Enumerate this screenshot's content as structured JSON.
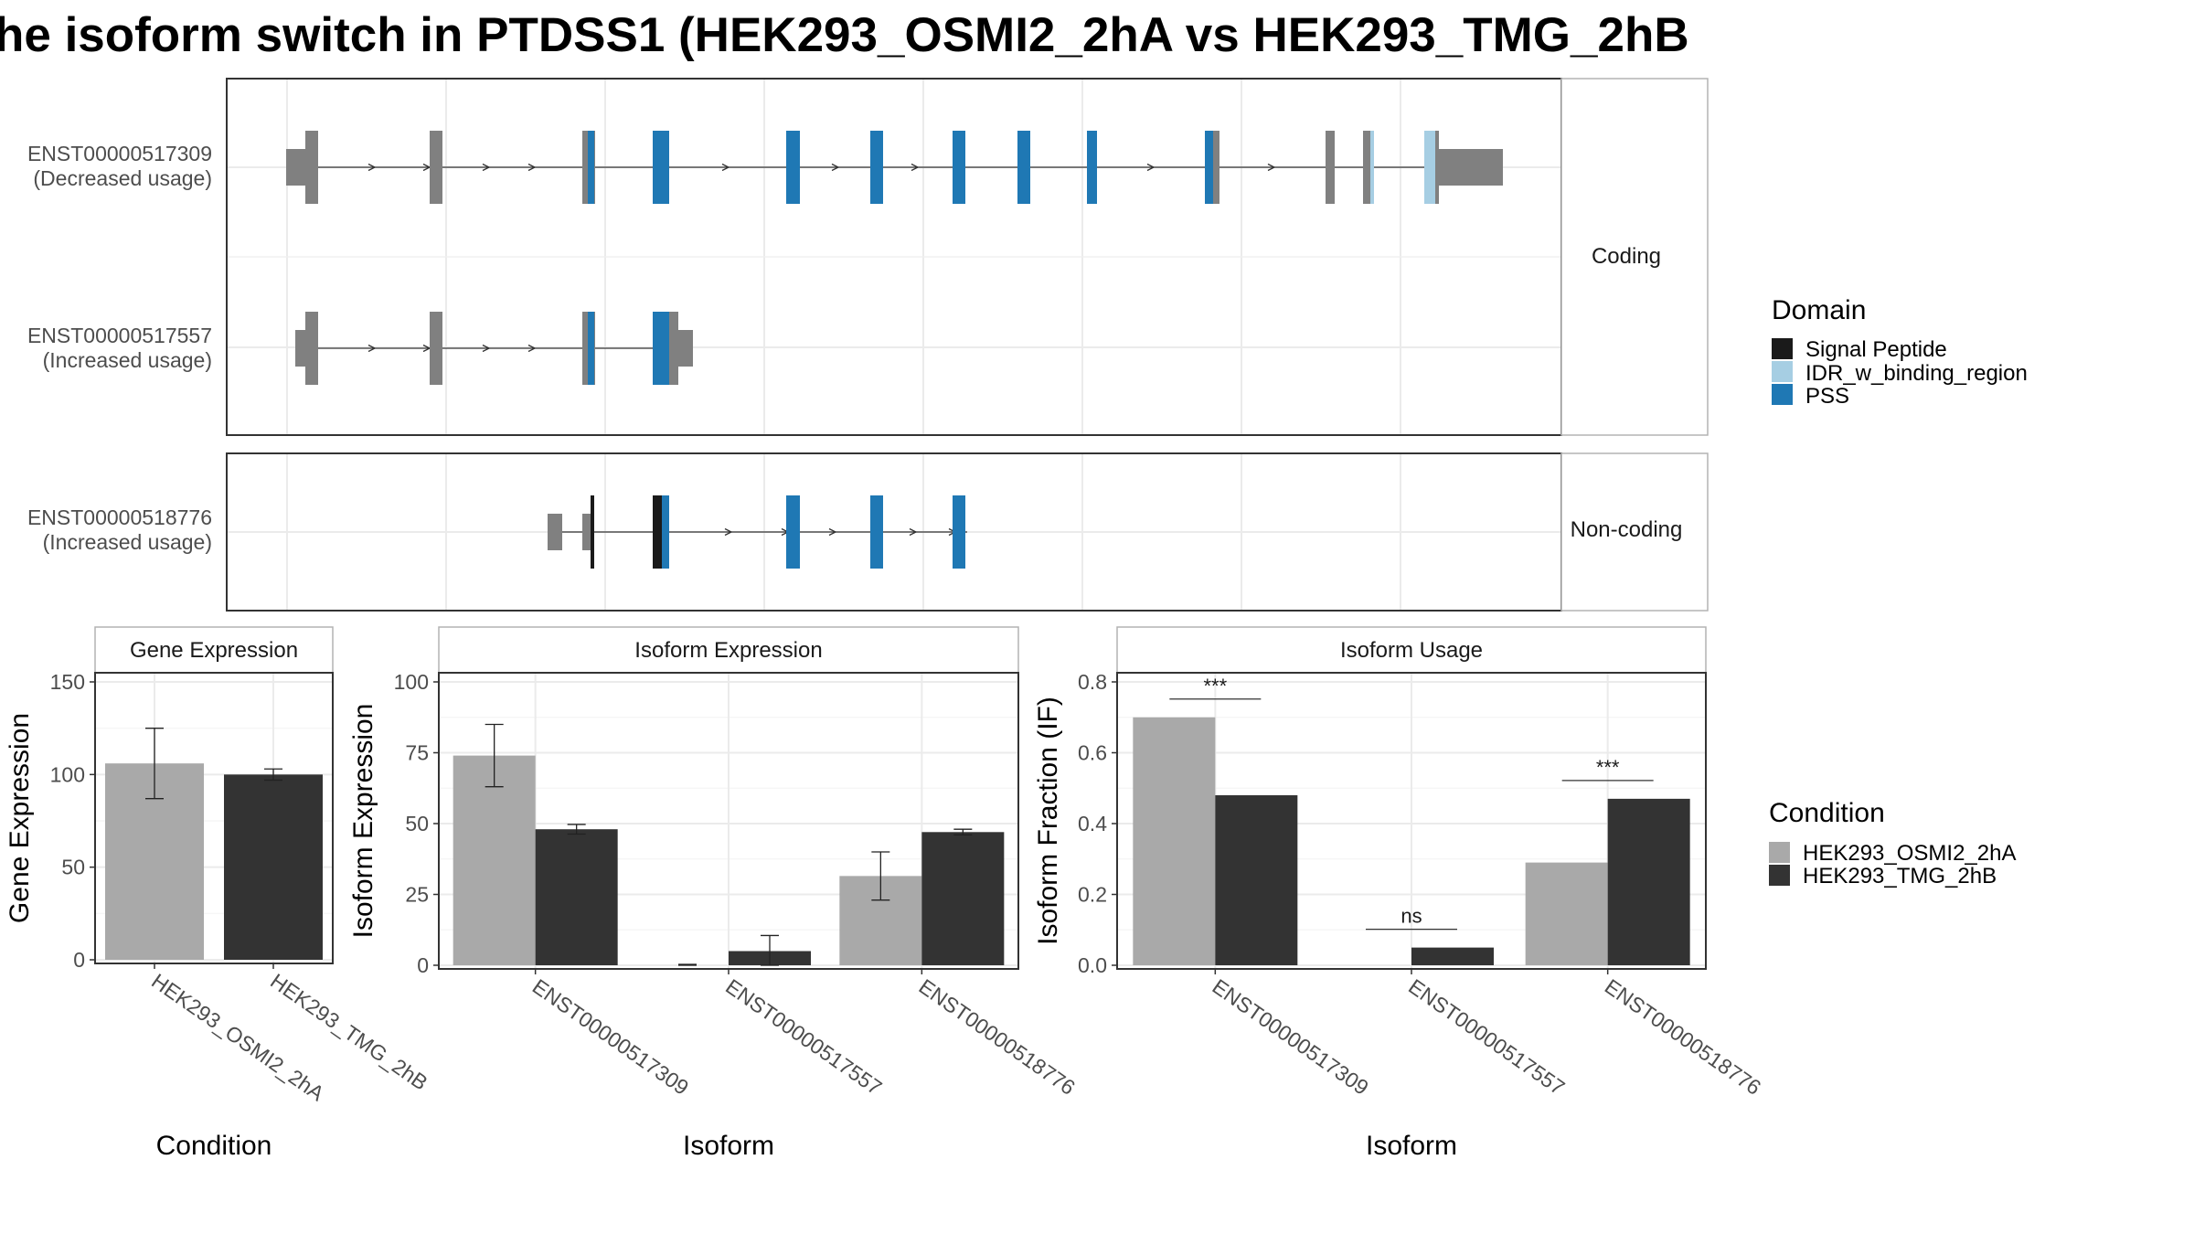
{
  "title": "he isoform switch in PTDSS1 (HEK293_OSMI2_2hA vs HEK293_TMG_2hB",
  "structure": {
    "coding_strip": "Coding",
    "noncoding_strip": "Non-coding",
    "transcripts": [
      {
        "id": "ENST00000517309",
        "usage": "(Decreased usage)"
      },
      {
        "id": "ENST00000517557",
        "usage": "(Increased usage)"
      },
      {
        "id": "ENST00000518776",
        "usage": "(Increased usage)"
      }
    ]
  },
  "legend_domain": {
    "title": "Domain",
    "items": [
      {
        "label": "Signal Peptide",
        "color": "#1a1a1a"
      },
      {
        "label": "IDR_w_binding_region",
        "color": "#a6cee3"
      },
      {
        "label": "PSS",
        "color": "#1f78b4"
      }
    ]
  },
  "legend_condition": {
    "title": "Condition",
    "items": [
      {
        "label": "HEK293_OSMI2_2hA",
        "color": "#a9a9a9"
      },
      {
        "label": "HEK293_TMG_2hB",
        "color": "#333333"
      }
    ]
  },
  "colors": {
    "exon": "#808080",
    "pss": "#1f78b4",
    "idr": "#a6cee3",
    "signal": "#1a1a1a"
  },
  "chart_data": [
    {
      "type": "bar",
      "panel": "Gene Expression",
      "xlabel": "Condition",
      "ylabel": "Gene Expression",
      "ylim": [
        0,
        150
      ],
      "yticks": [
        0,
        50,
        100,
        150
      ],
      "categories": [
        "HEK293_OSMI2_2hA",
        "HEK293_TMG_2hB"
      ],
      "values": [
        106,
        100
      ],
      "errors": [
        19,
        3
      ]
    },
    {
      "type": "bar",
      "panel": "Isoform Expression",
      "xlabel": "Isoform",
      "ylabel": "Isoform Expression",
      "ylim": [
        0,
        100
      ],
      "yticks": [
        0,
        25,
        50,
        75,
        100
      ],
      "categories": [
        "ENST00000517309",
        "ENST00000517557",
        "ENST00000518776"
      ],
      "series": [
        {
          "name": "HEK293_OSMI2_2hA",
          "values": [
            74,
            0,
            31.5
          ],
          "errors": [
            11,
            0.3,
            8.5
          ]
        },
        {
          "name": "HEK293_TMG_2hB",
          "values": [
            48,
            5,
            47
          ],
          "errors": [
            1.7,
            5.5,
            1
          ]
        }
      ]
    },
    {
      "type": "bar",
      "panel": "Isoform Usage",
      "xlabel": "Isoform",
      "ylabel": "Isoform Fraction (IF)",
      "ylim": [
        0,
        0.8
      ],
      "yticks": [
        "0.0",
        "0.2",
        "0.4",
        "0.6",
        "0.8"
      ],
      "categories": [
        "ENST00000517309",
        "ENST00000517557",
        "ENST00000518776"
      ],
      "series": [
        {
          "name": "HEK293_OSMI2_2hA",
          "values": [
            0.7,
            0.0,
            0.29
          ]
        },
        {
          "name": "HEK293_TMG_2hB",
          "values": [
            0.48,
            0.05,
            0.47
          ]
        }
      ],
      "significance": [
        "***",
        "ns",
        "***"
      ]
    }
  ]
}
